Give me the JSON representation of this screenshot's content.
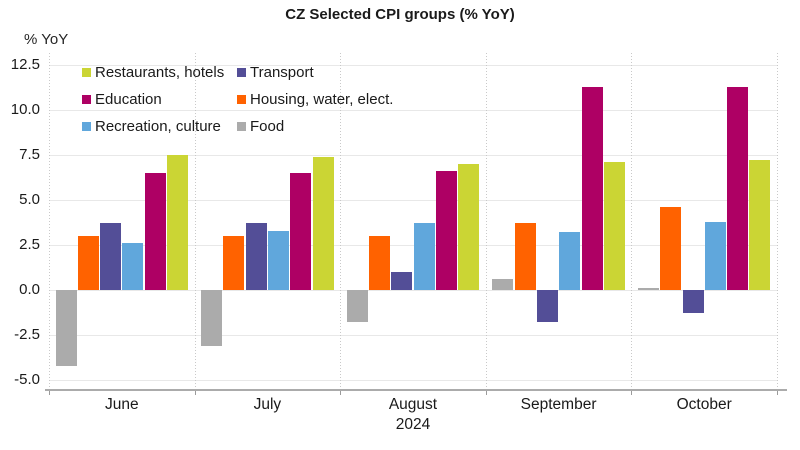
{
  "title": "CZ Selected CPI groups (% YoY)",
  "y_axis_label": "% YoY",
  "x_axis_year": "2024",
  "chart_data": {
    "type": "bar",
    "categories": [
      "June",
      "July",
      "August",
      "September",
      "October"
    ],
    "series": [
      {
        "name": "Food",
        "color": "#ABABAB",
        "values": [
          -4.2,
          -3.1,
          -1.8,
          0.6,
          0.1
        ]
      },
      {
        "name": "Housing, water, elect.",
        "color": "#FF6200",
        "values": [
          3.0,
          3.0,
          3.0,
          3.7,
          4.6
        ]
      },
      {
        "name": "Transport",
        "color": "#534E97",
        "values": [
          3.7,
          3.7,
          1.0,
          -1.8,
          -1.3
        ]
      },
      {
        "name": "Recreation, culture",
        "color": "#60A7DC",
        "values": [
          2.6,
          3.3,
          3.7,
          3.2,
          3.8
        ]
      },
      {
        "name": "Education",
        "color": "#AE0064",
        "values": [
          6.5,
          6.5,
          6.6,
          11.3,
          11.3
        ]
      },
      {
        "name": "Restaurants, hotels",
        "color": "#CBD534",
        "values": [
          7.5,
          7.4,
          7.0,
          7.1,
          7.2
        ]
      }
    ],
    "y_ticks": [
      12.5,
      10.0,
      7.5,
      5.0,
      2.5,
      0.0,
      -2.5,
      -5.0
    ],
    "ylim": [
      -5.6,
      13.2
    ],
    "grid": {
      "horizontal": "solid-light-gray",
      "vertical": "dotted-group-separators"
    },
    "legend": {
      "position": "top-left-inside",
      "rows": [
        [
          "Restaurants, hotels",
          "Transport"
        ],
        [
          "Education",
          "Housing, water, elect."
        ],
        [
          "Recreation, culture",
          "Food"
        ]
      ]
    }
  }
}
